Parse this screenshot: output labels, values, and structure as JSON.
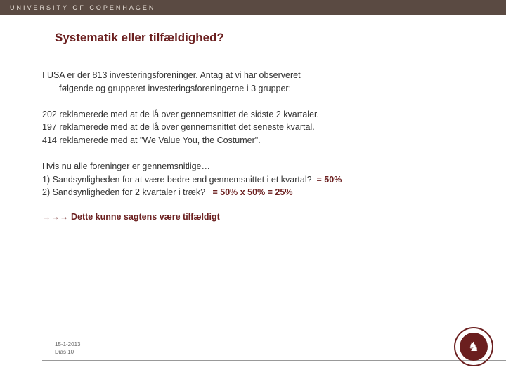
{
  "colors": {
    "topbar_bg": "#5a4a42",
    "topbar_text": "#e8e0d8",
    "title_color": "#6b1f1f",
    "body_text": "#333333",
    "accent": "#6b1f1f",
    "footer_text": "#666666",
    "footer_line": "#999999",
    "page_bg": "#ffffff"
  },
  "typography": {
    "title_fontsize": 17,
    "body_fontsize": 12.5,
    "footer_fontsize": 8,
    "topbar_fontsize": 9,
    "topbar_letterspacing": 3
  },
  "topbar": {
    "text": "UNIVERSITY OF COPENHAGEN"
  },
  "title": "Systematik eller tilfældighed?",
  "para1": {
    "line1": "I USA er der 813 investeringsforeninger. Antag at vi har observeret",
    "line2": "følgende og grupperet investeringsforeningerne i 3 grupper:"
  },
  "para2": {
    "line1": "202 reklamerede med at de lå over gennemsnittet de sidste 2 kvartaler.",
    "line2": "197 reklamerede med at de lå over gennemsnittet det seneste kvartal.",
    "line3": "414 reklamerede med at \"We Value You, the Costumer\"."
  },
  "para3": {
    "line1": "Hvis nu alle foreninger er gennemsnitlige…",
    "q1": "1) Sandsynligheden for at være bedre end gennemsnittet i et kvartal?",
    "a1": "= 50%",
    "q2": "2) Sandsynligheden for 2 kvartaler i træk?",
    "a2": "= 50% x 50% = 25%"
  },
  "conclusion": {
    "arrows": "→→→",
    "text": " Dette kunne sagtens være tilfældigt"
  },
  "footer": {
    "date": "15-1-2013",
    "slide": "Dias 10"
  },
  "seal": {
    "glyph": "♞"
  }
}
